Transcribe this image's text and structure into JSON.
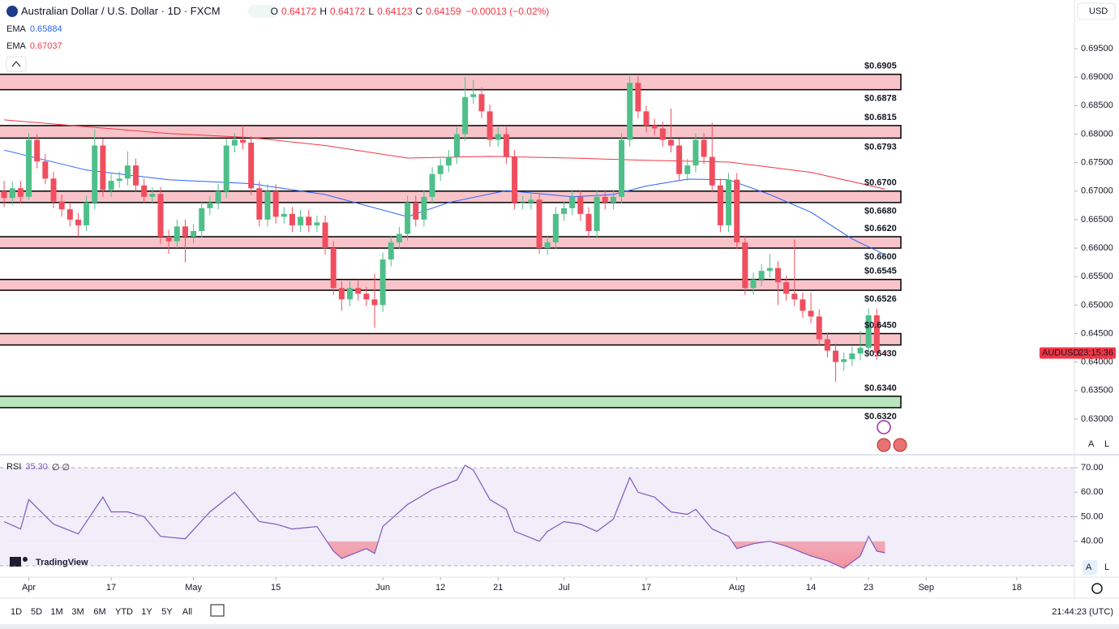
{
  "header": {
    "title": "Australian Dollar / U.S. Dollar · 1D · FXCM",
    "ohlc": [
      {
        "label": "O",
        "value": "0.64172"
      },
      {
        "label": "H",
        "value": "0.64172"
      },
      {
        "label": "L",
        "value": "0.64123"
      },
      {
        "label": "C",
        "value": "0.64159"
      }
    ],
    "change": "−0.00013 (−0.02%)"
  },
  "currency": "USD",
  "scale_buttons": [
    "A",
    "L"
  ],
  "logo": "TradingView",
  "price_tag": {
    "symbol": "AUDUSD",
    "countdown": "23:15:36"
  },
  "toolbar": {
    "ranges": [
      "1D",
      "5D",
      "1M",
      "3M",
      "6M",
      "YTD",
      "1Y",
      "5Y",
      "All"
    ],
    "clock": "21:44:23 (UTC)"
  },
  "chart_data": [
    {
      "type": "candlestick",
      "up_color": "#4fbf8a",
      "down_color": "#ef4e5f",
      "grid": false,
      "xlim": [
        -0.5,
        130
      ],
      "ylim": [
        0.62445,
        0.69984
      ],
      "xticks": [
        {
          "value": 3,
          "label": "Apr"
        },
        {
          "value": 13,
          "label": "17"
        },
        {
          "value": 23,
          "label": "May"
        },
        {
          "value": 33,
          "label": "15"
        },
        {
          "value": 46,
          "label": "Jun"
        },
        {
          "value": 53,
          "label": "12"
        },
        {
          "value": 60,
          "label": "21"
        },
        {
          "value": 68,
          "label": "Jul"
        },
        {
          "value": 78,
          "label": "17"
        },
        {
          "value": 89,
          "label": "Aug"
        },
        {
          "value": 98,
          "label": "14"
        },
        {
          "value": 105,
          "label": "23"
        },
        {
          "value": 112,
          "label": "Sep"
        },
        {
          "value": 123,
          "label": "18"
        }
      ],
      "yticks": [
        {
          "value": 0.695,
          "label": "0.69500"
        },
        {
          "value": 0.69,
          "label": "0.69000"
        },
        {
          "value": 0.685,
          "label": "0.68500"
        },
        {
          "value": 0.68,
          "label": "0.68000"
        },
        {
          "value": 0.675,
          "label": "0.67500"
        },
        {
          "value": 0.67,
          "label": "0.67000"
        },
        {
          "value": 0.665,
          "label": "0.66500"
        },
        {
          "value": 0.66,
          "label": "0.66000"
        },
        {
          "value": 0.655,
          "label": "0.65500"
        },
        {
          "value": 0.65,
          "label": "0.65000"
        },
        {
          "value": 0.645,
          "label": "0.64500"
        },
        {
          "value": 0.64,
          "label": "0.64000"
        },
        {
          "value": 0.635,
          "label": "0.63500"
        },
        {
          "value": 0.63,
          "label": "0.63000"
        }
      ],
      "ohlc": [
        [
          0.67,
          0.6718,
          0.6672,
          0.6688
        ],
        [
          0.6688,
          0.6717,
          0.6676,
          0.6705
        ],
        [
          0.6705,
          0.6718,
          0.6678,
          0.669
        ],
        [
          0.669,
          0.6802,
          0.6685,
          0.679
        ],
        [
          0.679,
          0.68,
          0.674,
          0.6752
        ],
        [
          0.6752,
          0.6765,
          0.6712,
          0.6722
        ],
        [
          0.6722,
          0.6734,
          0.667,
          0.6682
        ],
        [
          0.6682,
          0.6694,
          0.6655,
          0.6668
        ],
        [
          0.6668,
          0.668,
          0.6638,
          0.665
        ],
        [
          0.665,
          0.6662,
          0.662,
          0.664
        ],
        [
          0.664,
          0.6692,
          0.663,
          0.668
        ],
        [
          0.668,
          0.6808,
          0.6668,
          0.678
        ],
        [
          0.678,
          0.6792,
          0.669,
          0.6702
        ],
        [
          0.6702,
          0.673,
          0.669,
          0.6718
        ],
        [
          0.6718,
          0.6734,
          0.6706,
          0.6722
        ],
        [
          0.6722,
          0.677,
          0.671,
          0.6745
        ],
        [
          0.6745,
          0.6757,
          0.6698,
          0.671
        ],
        [
          0.671,
          0.6722,
          0.6678,
          0.669
        ],
        [
          0.669,
          0.6707,
          0.6678,
          0.6695
        ],
        [
          0.6695,
          0.6707,
          0.6608,
          0.662
        ],
        [
          0.662,
          0.6632,
          0.659,
          0.6612
        ],
        [
          0.6612,
          0.665,
          0.66,
          0.6638
        ],
        [
          0.6638,
          0.665,
          0.6575,
          0.662
        ],
        [
          0.662,
          0.6642,
          0.6608,
          0.663
        ],
        [
          0.663,
          0.6682,
          0.6618,
          0.667
        ],
        [
          0.667,
          0.6692,
          0.6658,
          0.668
        ],
        [
          0.668,
          0.6712,
          0.6668,
          0.67
        ],
        [
          0.67,
          0.6792,
          0.6688,
          0.678
        ],
        [
          0.678,
          0.6802,
          0.6768,
          0.679
        ],
        [
          0.679,
          0.6815,
          0.6773,
          0.6785
        ],
        [
          0.6785,
          0.6797,
          0.6693,
          0.6705
        ],
        [
          0.6705,
          0.6717,
          0.6638,
          0.665
        ],
        [
          0.665,
          0.6712,
          0.6638,
          0.67
        ],
        [
          0.67,
          0.6712,
          0.6643,
          0.6655
        ],
        [
          0.6655,
          0.6672,
          0.6643,
          0.666
        ],
        [
          0.666,
          0.6672,
          0.6628,
          0.664
        ],
        [
          0.664,
          0.6667,
          0.6628,
          0.6655
        ],
        [
          0.6655,
          0.6667,
          0.6628,
          0.664
        ],
        [
          0.664,
          0.6657,
          0.6628,
          0.6645
        ],
        [
          0.6645,
          0.6657,
          0.6588,
          0.66
        ],
        [
          0.66,
          0.6612,
          0.6518,
          0.653
        ],
        [
          0.653,
          0.6542,
          0.649,
          0.651
        ],
        [
          0.651,
          0.6542,
          0.6498,
          0.653
        ],
        [
          0.653,
          0.6545,
          0.6508,
          0.652
        ],
        [
          0.652,
          0.6532,
          0.6498,
          0.651
        ],
        [
          0.651,
          0.6555,
          0.646,
          0.65
        ],
        [
          0.65,
          0.6592,
          0.6488,
          0.658
        ],
        [
          0.658,
          0.6622,
          0.6568,
          0.661
        ],
        [
          0.661,
          0.6637,
          0.6598,
          0.6625
        ],
        [
          0.6625,
          0.6692,
          0.6613,
          0.668
        ],
        [
          0.668,
          0.6692,
          0.6638,
          0.665
        ],
        [
          0.665,
          0.6702,
          0.6638,
          0.669
        ],
        [
          0.669,
          0.6742,
          0.6678,
          0.673
        ],
        [
          0.673,
          0.6757,
          0.6718,
          0.6745
        ],
        [
          0.6745,
          0.6772,
          0.6733,
          0.676
        ],
        [
          0.676,
          0.6812,
          0.6748,
          0.68
        ],
        [
          0.68,
          0.69,
          0.6788,
          0.6865
        ],
        [
          0.6865,
          0.6895,
          0.6853,
          0.687
        ],
        [
          0.687,
          0.6882,
          0.6828,
          0.684
        ],
        [
          0.684,
          0.6852,
          0.6778,
          0.679
        ],
        [
          0.679,
          0.6812,
          0.6778,
          0.68
        ],
        [
          0.68,
          0.6812,
          0.6748,
          0.676
        ],
        [
          0.676,
          0.6772,
          0.6668,
          0.668
        ],
        [
          0.668,
          0.6692,
          0.6668,
          0.668
        ],
        [
          0.668,
          0.6697,
          0.6668,
          0.6685
        ],
        [
          0.6685,
          0.6697,
          0.659,
          0.66
        ],
        [
          0.66,
          0.6622,
          0.6588,
          0.661
        ],
        [
          0.661,
          0.6672,
          0.6598,
          0.666
        ],
        [
          0.666,
          0.6682,
          0.6648,
          0.667
        ],
        [
          0.667,
          0.6702,
          0.6658,
          0.669
        ],
        [
          0.669,
          0.6702,
          0.6648,
          0.666
        ],
        [
          0.666,
          0.6672,
          0.6618,
          0.663
        ],
        [
          0.663,
          0.6702,
          0.6618,
          0.669
        ],
        [
          0.669,
          0.6702,
          0.6668,
          0.668
        ],
        [
          0.668,
          0.6702,
          0.6668,
          0.669
        ],
        [
          0.669,
          0.6802,
          0.6678,
          0.679
        ],
        [
          0.679,
          0.6902,
          0.6778,
          0.689
        ],
        [
          0.689,
          0.6902,
          0.6828,
          0.684
        ],
        [
          0.684,
          0.685,
          0.6803,
          0.6815
        ],
        [
          0.6815,
          0.6827,
          0.6798,
          0.681
        ],
        [
          0.681,
          0.6822,
          0.6778,
          0.679
        ],
        [
          0.679,
          0.6845,
          0.6768,
          0.678
        ],
        [
          0.678,
          0.6792,
          0.6718,
          0.673
        ],
        [
          0.673,
          0.6757,
          0.6718,
          0.6745
        ],
        [
          0.6745,
          0.6802,
          0.6733,
          0.679
        ],
        [
          0.679,
          0.6802,
          0.6748,
          0.676
        ],
        [
          0.676,
          0.682,
          0.6698,
          0.671
        ],
        [
          0.671,
          0.6722,
          0.6628,
          0.664
        ],
        [
          0.664,
          0.6732,
          0.6628,
          0.672
        ],
        [
          0.672,
          0.6732,
          0.6598,
          0.661
        ],
        [
          0.661,
          0.6622,
          0.6518,
          0.653
        ],
        [
          0.653,
          0.6557,
          0.6518,
          0.6545
        ],
        [
          0.6545,
          0.6572,
          0.6533,
          0.656
        ],
        [
          0.656,
          0.659,
          0.6548,
          0.6565
        ],
        [
          0.6565,
          0.6577,
          0.65,
          0.654
        ],
        [
          0.654,
          0.6552,
          0.6508,
          0.652
        ],
        [
          0.652,
          0.6615,
          0.6498,
          0.651
        ],
        [
          0.651,
          0.6522,
          0.6478,
          0.649
        ],
        [
          0.649,
          0.6522,
          0.6468,
          0.648
        ],
        [
          0.648,
          0.6492,
          0.6428,
          0.644
        ],
        [
          0.644,
          0.6452,
          0.6408,
          0.642
        ],
        [
          0.642,
          0.6432,
          0.6365,
          0.64
        ],
        [
          0.64,
          0.6417,
          0.6385,
          0.6405
        ],
        [
          0.6405,
          0.6427,
          0.6393,
          0.6415
        ],
        [
          0.6415,
          0.6455,
          0.6403,
          0.6425
        ],
        [
          0.6425,
          0.6494,
          0.6413,
          0.6482
        ],
        [
          0.6482,
          0.6494,
          0.6404,
          0.6416
        ],
        [
          0.64172,
          0.64172,
          0.64123,
          0.64159
        ]
      ],
      "series": [
        {
          "name": "EMA",
          "value_label": "0.65884",
          "color": "#2962ff",
          "x": [
            0,
            10,
            20,
            30,
            39,
            49,
            54,
            61,
            69,
            74,
            78,
            83,
            88,
            93,
            98,
            103,
            107
          ],
          "values": [
            0.6772,
            0.6737,
            0.672,
            0.6713,
            0.6694,
            0.6655,
            0.668,
            0.6701,
            0.669,
            0.6694,
            0.6709,
            0.6721,
            0.672,
            0.6694,
            0.6663,
            0.6616,
            0.65884
          ]
        },
        {
          "name": "EMA",
          "value_label": "0.67037",
          "color": "#f23645",
          "x": [
            0,
            20,
            30,
            39,
            49,
            59,
            69,
            78,
            88,
            98,
            107
          ],
          "values": [
            0.6825,
            0.6801,
            0.6794,
            0.678,
            0.6758,
            0.6761,
            0.6758,
            0.6754,
            0.6751,
            0.6733,
            0.67037
          ]
        }
      ],
      "levels": [
        {
          "top": {
            "value": 0.6905,
            "label": "$0.6905"
          },
          "bottom": {
            "value": 0.6878,
            "label": "$0.6878"
          },
          "color": "#f8c4c9"
        },
        {
          "top": {
            "value": 0.6815,
            "label": "$0.6815"
          },
          "bottom": {
            "value": 0.6793,
            "label": "$0.6793"
          },
          "color": "#f8c4c9"
        },
        {
          "top": {
            "value": 0.67,
            "label": "$0.6700"
          },
          "bottom": {
            "value": 0.668,
            "label": "$0.6680"
          },
          "color": "#f8c4c9"
        },
        {
          "top": {
            "value": 0.662,
            "label": "$0.6620"
          },
          "bottom": {
            "value": 0.66,
            "label": "$0.6600"
          },
          "color": "#f8c4c9"
        },
        {
          "top": {
            "value": 0.6545,
            "label": "$0.6545"
          },
          "bottom": {
            "value": 0.6526,
            "label": "$0.6526"
          },
          "color": "#f8c4c9"
        },
        {
          "top": {
            "value": 0.645,
            "label": "$0.6450"
          },
          "bottom": {
            "value": 0.643,
            "label": "$0.6430"
          },
          "color": "#f8c4c9"
        },
        {
          "top": {
            "value": 0.634,
            "label": "$0.6340"
          },
          "bottom": {
            "value": 0.632,
            "label": "$0.6320"
          },
          "color": "#b9e6bd"
        }
      ]
    },
    {
      "type": "line",
      "name": "RSI",
      "value_label": "35.30",
      "extra": "∅ ∅",
      "color": "#7e57c2",
      "ylim": [
        25.37,
        74.63
      ],
      "yticks": [
        {
          "value": 70,
          "label": "70.00"
        },
        {
          "value": 60,
          "label": "60.00"
        },
        {
          "value": 50,
          "label": "50.00"
        },
        {
          "value": 40,
          "label": "40.00"
        }
      ],
      "bands": [
        30,
        70
      ],
      "midline": 50,
      "fill_below": 40,
      "x": [
        0,
        2,
        3,
        6,
        9,
        12,
        13,
        15,
        17,
        19,
        22,
        25,
        28,
        31,
        33,
        35,
        38,
        40,
        41,
        44,
        45,
        46,
        49,
        52,
        55,
        56,
        57,
        59,
        61,
        62,
        65,
        66,
        68,
        70,
        72,
        74,
        76,
        77,
        79,
        81,
        83,
        84,
        86,
        88,
        89,
        91,
        93,
        95,
        98,
        100,
        102,
        104,
        105,
        106,
        107
      ],
      "values": [
        48,
        45,
        57,
        47,
        43,
        58,
        52,
        52,
        50,
        42,
        41,
        52,
        60,
        48,
        47,
        45,
        46,
        36,
        33,
        37,
        35,
        46,
        55,
        61,
        65,
        71,
        69,
        57,
        53,
        44,
        40,
        44,
        48,
        47,
        44,
        49,
        66,
        60,
        58,
        52,
        51,
        53,
        45,
        42,
        37,
        39,
        40,
        38,
        34,
        32,
        29,
        34,
        42,
        36,
        35.3
      ]
    }
  ]
}
